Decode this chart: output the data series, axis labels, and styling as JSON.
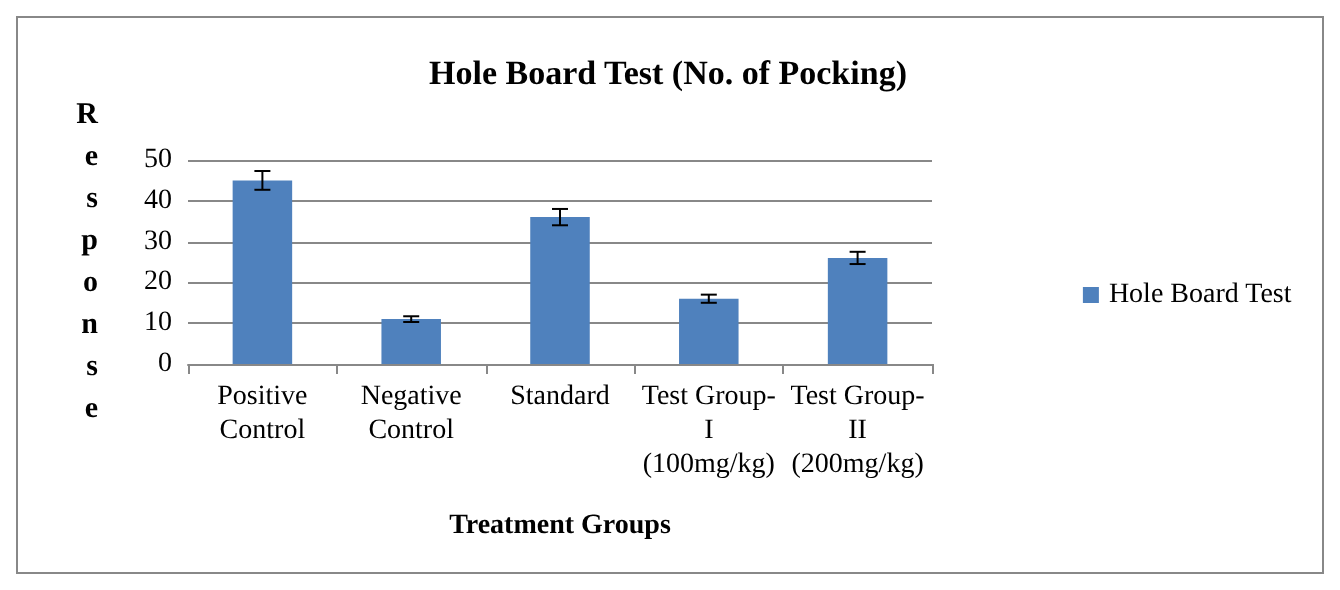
{
  "chart_data": {
    "type": "bar",
    "title": "Hole Board Test (No. of Pocking)",
    "xlabel": "Treatment Groups",
    "ylabel": "Response",
    "categories": [
      "Positive\nControl",
      "Negative\nControl",
      "Standard",
      "Test Group-\nI\n(100mg/kg)",
      "Test Group-\nII\n(200mg/kg)"
    ],
    "series": [
      {
        "name": "Hole Board Test",
        "color": "#4f81bd",
        "values": [
          45,
          11,
          36,
          16,
          26
        ],
        "errors": [
          2.3,
          0.7,
          2,
          1,
          1.5
        ]
      }
    ],
    "ylim": [
      0,
      50
    ],
    "yticks": [
      0,
      10,
      20,
      30,
      40,
      50
    ],
    "grid": "y",
    "legend": "right"
  }
}
